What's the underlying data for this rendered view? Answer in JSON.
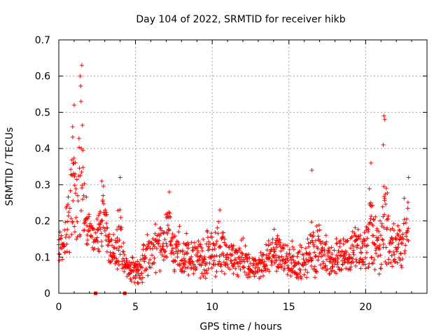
{
  "chart_data": {
    "type": "scatter",
    "title": "Day 104 of 2022, SRMTID for receiver hikb",
    "xlabel": "GPS time / hours",
    "ylabel": "SRMTID / TECUs",
    "xlim": [
      0,
      24
    ],
    "ylim": [
      0,
      0.7
    ],
    "x_ticks": [
      0,
      5,
      10,
      15,
      20
    ],
    "x_tick_labels": [
      "0",
      "5",
      "10",
      "15",
      "20"
    ],
    "y_ticks": [
      0,
      0.1,
      0.2,
      0.3,
      0.4,
      0.5,
      0.6,
      0.7
    ],
    "y_tick_labels": [
      "0",
      "0.1",
      "0.2",
      "0.3",
      "0.4",
      "0.5",
      "0.6",
      "0.7"
    ],
    "grid": true,
    "marker": "plus",
    "color": "#ff0000",
    "series": [
      {
        "name": "SRMTID",
        "envelope": [
          [
            0.0,
            0.08,
            0.12,
            0.16
          ],
          [
            0.3,
            0.08,
            0.14,
            0.2
          ],
          [
            0.6,
            0.1,
            0.2,
            0.3
          ],
          [
            0.9,
            0.12,
            0.25,
            0.5
          ],
          [
            1.2,
            0.14,
            0.25,
            0.4
          ],
          [
            1.45,
            0.15,
            0.3,
            0.63
          ],
          [
            1.7,
            0.14,
            0.22,
            0.3
          ],
          [
            2.0,
            0.12,
            0.18,
            0.22
          ],
          [
            2.3,
            0.1,
            0.16,
            0.2
          ],
          [
            2.6,
            0.1,
            0.18,
            0.25
          ],
          [
            2.9,
            0.1,
            0.22,
            0.31
          ],
          [
            3.2,
            0.08,
            0.15,
            0.22
          ],
          [
            3.5,
            0.08,
            0.12,
            0.18
          ],
          [
            3.8,
            0.06,
            0.12,
            0.2
          ],
          [
            4.0,
            0.05,
            0.15,
            0.3
          ],
          [
            4.3,
            0.04,
            0.08,
            0.12
          ],
          [
            4.6,
            0.04,
            0.07,
            0.1
          ],
          [
            5.0,
            0.02,
            0.06,
            0.1
          ],
          [
            5.3,
            0.02,
            0.07,
            0.12
          ],
          [
            5.6,
            0.03,
            0.09,
            0.15
          ],
          [
            6.0,
            0.05,
            0.11,
            0.18
          ],
          [
            6.5,
            0.06,
            0.13,
            0.2
          ],
          [
            7.0,
            0.07,
            0.15,
            0.25
          ],
          [
            7.2,
            0.08,
            0.18,
            0.28
          ],
          [
            7.5,
            0.06,
            0.12,
            0.2
          ],
          [
            8.0,
            0.04,
            0.1,
            0.18
          ],
          [
            8.5,
            0.05,
            0.1,
            0.16
          ],
          [
            9.0,
            0.04,
            0.09,
            0.15
          ],
          [
            9.5,
            0.04,
            0.1,
            0.17
          ],
          [
            10.0,
            0.04,
            0.11,
            0.2
          ],
          [
            10.5,
            0.05,
            0.12,
            0.22
          ],
          [
            11.0,
            0.05,
            0.1,
            0.16
          ],
          [
            11.5,
            0.04,
            0.09,
            0.14
          ],
          [
            12.0,
            0.05,
            0.1,
            0.16
          ],
          [
            12.5,
            0.04,
            0.08,
            0.12
          ],
          [
            13.0,
            0.04,
            0.07,
            0.11
          ],
          [
            13.5,
            0.05,
            0.09,
            0.15
          ],
          [
            14.0,
            0.06,
            0.12,
            0.2
          ],
          [
            14.5,
            0.05,
            0.1,
            0.16
          ],
          [
            15.0,
            0.05,
            0.09,
            0.15
          ],
          [
            15.5,
            0.04,
            0.08,
            0.14
          ],
          [
            16.0,
            0.03,
            0.08,
            0.14
          ],
          [
            16.5,
            0.04,
            0.12,
            0.24
          ],
          [
            17.0,
            0.05,
            0.11,
            0.2
          ],
          [
            17.5,
            0.05,
            0.1,
            0.16
          ],
          [
            18.0,
            0.05,
            0.1,
            0.15
          ],
          [
            18.5,
            0.06,
            0.11,
            0.17
          ],
          [
            19.0,
            0.06,
            0.12,
            0.17
          ],
          [
            19.5,
            0.07,
            0.13,
            0.2
          ],
          [
            20.0,
            0.04,
            0.11,
            0.2
          ],
          [
            20.3,
            0.08,
            0.18,
            0.36
          ],
          [
            20.7,
            0.05,
            0.11,
            0.2
          ],
          [
            21.0,
            0.05,
            0.13,
            0.27
          ],
          [
            21.2,
            0.1,
            0.2,
            0.49
          ],
          [
            21.5,
            0.06,
            0.12,
            0.2
          ],
          [
            22.0,
            0.08,
            0.13,
            0.22
          ],
          [
            22.4,
            0.07,
            0.14,
            0.25
          ],
          [
            22.8,
            0.12,
            0.2,
            0.32
          ]
        ],
        "spikes": [
          [
            0.9,
            0.46
          ],
          [
            1.0,
            0.52
          ],
          [
            1.4,
            0.6
          ],
          [
            1.5,
            0.63
          ],
          [
            1.45,
            0.53
          ],
          [
            21.2,
            0.49
          ],
          [
            21.25,
            0.48
          ],
          [
            21.15,
            0.41
          ],
          [
            16.5,
            0.34
          ],
          [
            20.35,
            0.36
          ],
          [
            22.8,
            0.32
          ],
          [
            2.8,
            0.31
          ],
          [
            4.0,
            0.32
          ],
          [
            7.2,
            0.28
          ],
          [
            10.5,
            0.23
          ]
        ],
        "zero_points": [
          [
            2.4,
            0.0
          ],
          [
            4.3,
            0.0
          ]
        ]
      }
    ]
  }
}
